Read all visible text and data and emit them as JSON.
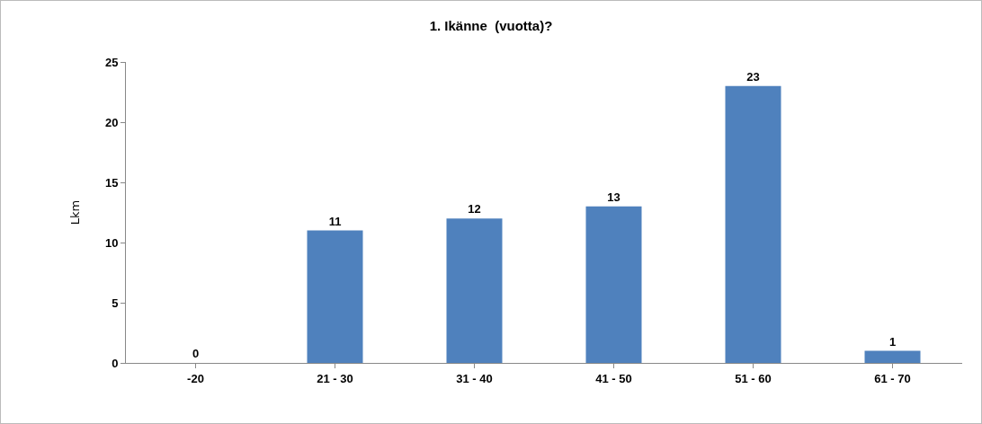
{
  "chart_data": {
    "type": "bar",
    "title": "1. Ikänne  (vuotta)?",
    "ylabel": "Lkm",
    "categories": [
      "-20",
      "21 - 30",
      "31 - 40",
      "41 - 50",
      "51 - 60",
      "61 - 70"
    ],
    "values": [
      0,
      11,
      12,
      13,
      23,
      1
    ],
    "color": "#4f81bd",
    "ylim": [
      0,
      25
    ],
    "yticks": [
      0,
      5,
      10,
      15,
      20,
      25
    ],
    "grid": false,
    "legend": false,
    "data_labels": true
  }
}
